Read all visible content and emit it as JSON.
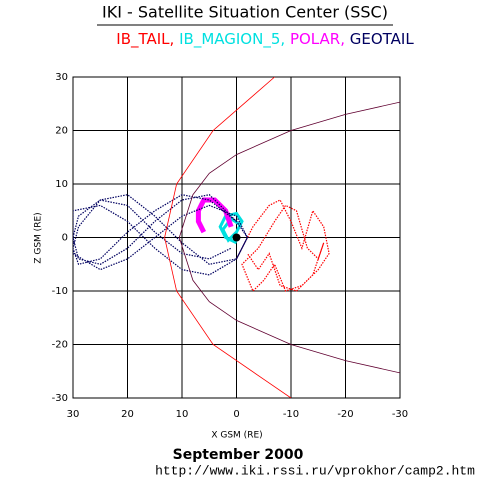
{
  "chart_data": {
    "type": "line",
    "title": "IKI - Satellite Situation Center (SSC)",
    "legend_separator": ",",
    "x_label": "X GSM (RE)",
    "y_label": "Z GSM (RE)",
    "date": "September 2000",
    "url": "http://www.iki.rssi.ru/vprokhor/camp2.htm",
    "xlim": [
      30,
      -30
    ],
    "ylim": [
      -30,
      30
    ],
    "xticks": [
      30,
      20,
      10,
      0,
      -10,
      -20,
      -30
    ],
    "yticks": [
      -30,
      -20,
      -10,
      0,
      10,
      20,
      30
    ],
    "grid": true,
    "series": [
      {
        "name": "IB_TAIL",
        "color": "#ff0000",
        "x": [
          0,
          -3,
          -6,
          -8,
          -10,
          -12,
          -14,
          -16,
          -17,
          -15,
          -12,
          -9,
          -7,
          -5,
          -3,
          -1,
          -4,
          -7,
          -9,
          -11,
          -13,
          -15,
          -16,
          -14,
          -11,
          -8,
          -6,
          -4,
          -2
        ],
        "values": [
          -4,
          2,
          6,
          7,
          3,
          -2,
          5,
          2,
          -3,
          -6,
          -9,
          -10,
          -5,
          -8,
          -10,
          -5,
          -2,
          3,
          6,
          5,
          -2,
          -4,
          -1,
          -7,
          -10,
          -9,
          -3,
          -6,
          -3
        ]
      },
      {
        "name": "IB_MAGION_5",
        "color": "#00e0e0",
        "x": [
          0,
          2,
          3,
          2,
          0,
          -1,
          0,
          1.5,
          2.5,
          1,
          -0.5
        ],
        "values": [
          -1,
          0,
          2,
          4,
          4.5,
          3,
          1,
          -0.5,
          1.5,
          3.5,
          2.5
        ]
      },
      {
        "name": "POLAR",
        "color": "#ff00ff",
        "x": [
          1,
          2,
          4,
          6,
          7,
          7,
          6
        ],
        "values": [
          2,
          5,
          7,
          7,
          5,
          3,
          1
        ]
      },
      {
        "name": "GEOTAIL",
        "color": "#000060",
        "x": [
          0,
          5,
          10,
          15,
          20,
          25,
          29,
          30,
          29,
          25,
          20,
          15,
          10,
          5,
          0,
          -2,
          0,
          5,
          10,
          15,
          20,
          25,
          30,
          30,
          30,
          25,
          20,
          15,
          10,
          5,
          0,
          -2,
          0,
          5,
          10,
          15,
          20,
          25,
          29,
          30,
          29,
          25,
          20,
          15,
          10,
          5,
          1
        ],
        "values": [
          3,
          7,
          8,
          5,
          1,
          -4,
          -5,
          -2,
          2,
          7,
          8,
          4,
          -1,
          -5,
          -4,
          0,
          4,
          6,
          4,
          0,
          -4,
          -6,
          -3,
          1,
          5,
          6,
          3,
          -2,
          -6,
          -7,
          -4,
          0,
          3,
          8,
          7,
          3,
          -2,
          -5,
          -4,
          0,
          4,
          7,
          6,
          1,
          -3,
          -4,
          -2
        ]
      },
      {
        "color": "#ff0000",
        "x": [
          -7,
          4.3,
          11,
          13.2,
          11,
          4.3,
          -10
        ],
        "values": [
          30,
          20,
          10,
          0,
          -10,
          -20,
          -30
        ]
      },
      {
        "color": "#600030",
        "x": [
          -30,
          -20,
          -10,
          0,
          5,
          8,
          10.5,
          8,
          5,
          0,
          -10,
          -20,
          -30
        ],
        "values": [
          25.3,
          23,
          20,
          15.5,
          12,
          8,
          0,
          -8,
          -12,
          -15.5,
          -20,
          -23,
          -25.3
        ]
      }
    ]
  }
}
